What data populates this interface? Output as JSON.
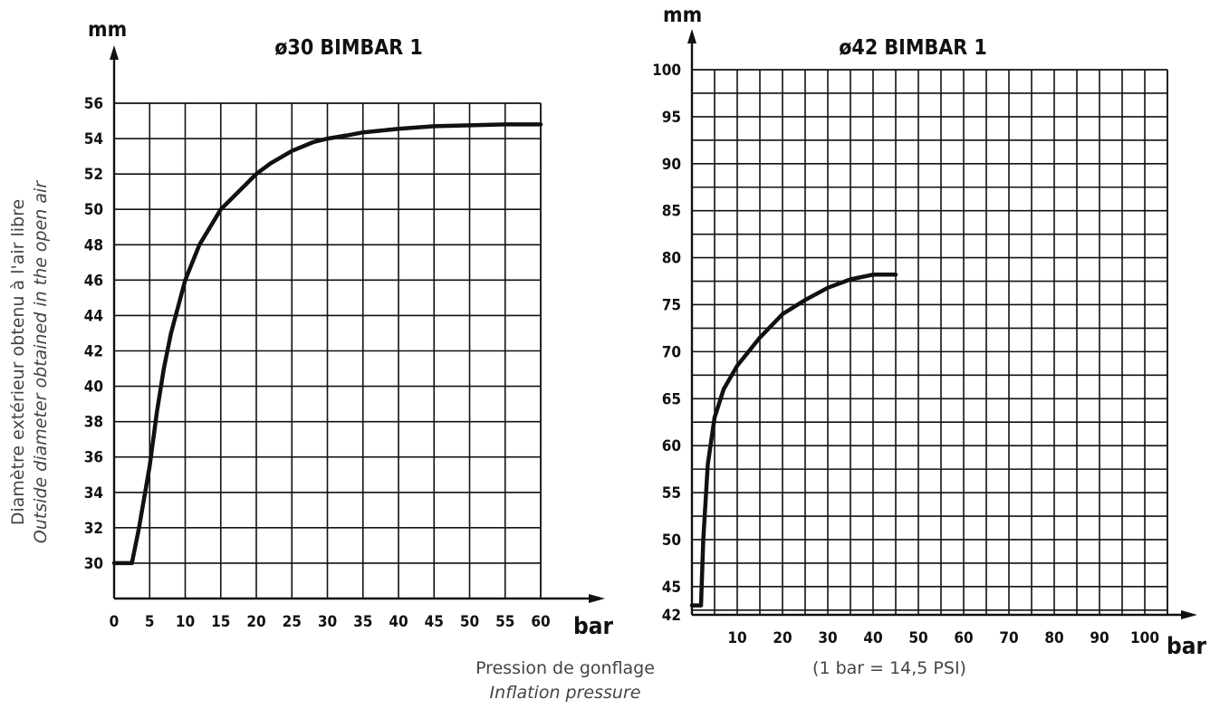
{
  "colors": {
    "ink": "#111111",
    "caption": "#444444",
    "background": "#ffffff"
  },
  "y_axis_caption": {
    "fr": "Diamètre extérieur obtenu à l'air libre",
    "en": "Outside diameter obtained in the open air"
  },
  "x_axis_caption": {
    "fr": "Pression de gonflage",
    "en": "Inflation pressure"
  },
  "conversion_note": "(1 bar = 14,5 PSI)",
  "chart_data": [
    {
      "type": "line",
      "title": "ø30 BIMBAR 1",
      "xlabel": "bar",
      "ylabel": "mm",
      "xlim": [
        0,
        60
      ],
      "ylim": [
        28,
        56
      ],
      "x_ticks": [
        0,
        5,
        10,
        15,
        20,
        25,
        30,
        35,
        40,
        45,
        50,
        55,
        60
      ],
      "y_ticks": [
        30,
        32,
        34,
        36,
        38,
        40,
        42,
        44,
        46,
        48,
        50,
        52,
        54,
        56
      ],
      "x_grid_step": 5,
      "y_grid_step": 2,
      "grid": true,
      "series": [
        {
          "x": [
            0,
            2.5,
            3.5,
            5,
            6,
            7,
            8,
            10,
            12,
            15,
            18,
            20,
            22,
            25,
            28,
            30,
            33,
            35,
            40,
            45,
            50,
            55,
            60
          ],
          "y": [
            30,
            30,
            32,
            35.5,
            38.5,
            41,
            43,
            46,
            48,
            50,
            51.2,
            52,
            52.6,
            53.3,
            53.8,
            54,
            54.2,
            54.35,
            54.55,
            54.7,
            54.75,
            54.8,
            54.8
          ]
        }
      ]
    },
    {
      "type": "line",
      "title": "ø42 BIMBAR 1",
      "xlabel": "bar",
      "ylabel": "mm",
      "xlim": [
        0,
        105
      ],
      "ylim": [
        42,
        100
      ],
      "x_ticks": [
        10,
        20,
        30,
        40,
        50,
        60,
        70,
        80,
        90,
        100
      ],
      "y_ticks": [
        42,
        45,
        50,
        55,
        60,
        65,
        70,
        75,
        80,
        85,
        90,
        95,
        100
      ],
      "x_grid_step": 5,
      "y_grid_step": 2.5,
      "grid": true,
      "series": [
        {
          "x": [
            0,
            2,
            2.5,
            3.5,
            5,
            7,
            10,
            15,
            20,
            25,
            30,
            35,
            40,
            45
          ],
          "y": [
            43,
            43,
            50,
            58,
            63,
            66,
            68.5,
            71.5,
            74,
            75.5,
            76.8,
            77.7,
            78.2,
            78.2
          ]
        }
      ]
    }
  ]
}
